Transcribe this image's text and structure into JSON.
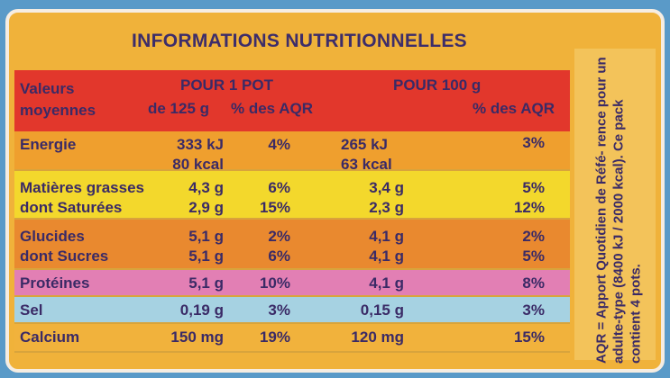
{
  "title": "INFORMATIONS NUTRITIONNELLES",
  "header": {
    "line1": "Valeurs",
    "line2": "moyennes",
    "pot_label": "POUR 1 POT",
    "pot_size": "de 125 g",
    "pot_aqr": "% des AQR",
    "per100_label": "POUR 100 g",
    "per100_aqr": "% des AQR"
  },
  "rows": [
    {
      "name": "energy",
      "bg": "#ef9f2e",
      "height": 44,
      "label": [
        "Energie"
      ],
      "pot": [
        "333 kJ",
        "80 kcal"
      ],
      "pot_aqr": [
        "4%"
      ],
      "per100": [
        "265 kJ",
        "63 kcal"
      ],
      "per100_aqr": [
        "3%"
      ]
    },
    {
      "name": "fat",
      "bg": "#f3d82c",
      "height": 54,
      "label": [
        "Matières grasses",
        "dont Saturées"
      ],
      "pot": [
        "4,3 g",
        "2,9 g"
      ],
      "pot_aqr": [
        "6%",
        "15%"
      ],
      "per100": [
        "3,4 g",
        "2,3 g"
      ],
      "per100_aqr": [
        "5%",
        "12%"
      ]
    },
    {
      "name": "carbs",
      "bg": "#e9892f",
      "height": 56,
      "label": [
        "Glucides",
        "dont Sucres"
      ],
      "pot": [
        "5,1 g",
        "5,1 g"
      ],
      "pot_aqr": [
        "2%",
        "6%"
      ],
      "per100": [
        "4,1 g",
        "4,1 g"
      ],
      "per100_aqr": [
        "2%",
        "5%"
      ]
    },
    {
      "name": "protein",
      "bg": "#e27fb4",
      "height": 30,
      "label": [
        "Protéines"
      ],
      "pot": [
        "5,1 g"
      ],
      "pot_aqr": [
        "10%"
      ],
      "per100": [
        "4,1 g"
      ],
      "per100_aqr": [
        "8%"
      ]
    },
    {
      "name": "salt",
      "bg": "#a6d2e2",
      "height": 30,
      "label": [
        "Sel"
      ],
      "pot": [
        "0,19 g"
      ],
      "pot_aqr": [
        "3%"
      ],
      "per100": [
        "0,15 g"
      ],
      "per100_aqr": [
        "3%"
      ]
    },
    {
      "name": "calcium",
      "bg": "#f1b23c",
      "height": 32,
      "label": [
        "Calcium"
      ],
      "pot": [
        "150 mg"
      ],
      "pot_aqr": [
        "19%"
      ],
      "per100": [
        "120 mg"
      ],
      "per100_aqr": [
        "15%"
      ]
    }
  ],
  "note": "AQR = Apport Quotidien de Réfé- rence pour un adulte-type (8400 kJ / 2000 kcal). Ce pack contient 4 pots.",
  "colors": {
    "header_bg": "#e2372c",
    "title_bg": "#f0b23a",
    "text": "#3a2a66"
  }
}
